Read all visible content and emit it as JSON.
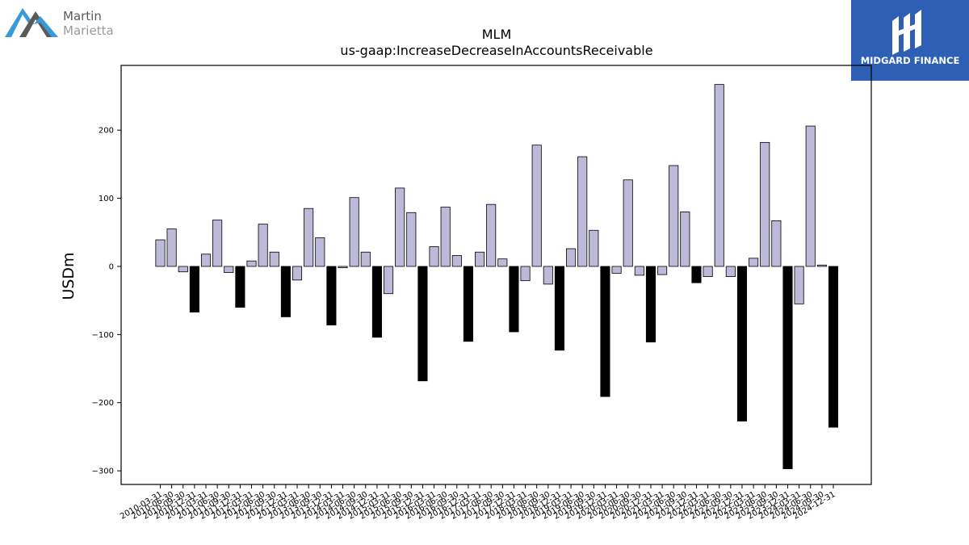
{
  "logos": {
    "left_line1": "Martin",
    "left_line2": "Marietta",
    "right_text": "MIDGARD FINANCE"
  },
  "colors": {
    "positive_bar": "#bcb9d9",
    "annual_bar": "#000000",
    "brand_blue": "#2d5fb4",
    "logo_blue": "#3a9ad9",
    "logo_gray": "#5a5a5a"
  },
  "chart_data": {
    "type": "bar",
    "title": "MLM",
    "subtitle": "us-gaap:IncreaseDecreaseInAccountsReceivable",
    "xlabel": "",
    "ylabel": "USDm",
    "ylim": [
      -320,
      295
    ],
    "yticks": [
      -300,
      -200,
      -100,
      0,
      100,
      200
    ],
    "ytick_labels": [
      "−300",
      "−200",
      "−100",
      "0",
      "100",
      "200"
    ],
    "grid": false,
    "categories": [
      "2010-03-31",
      "2010-06-30",
      "2010-09-30",
      "2010-12-31",
      "2011-03-31",
      "2011-06-30",
      "2011-09-30",
      "2011-12-31",
      "2012-03-31",
      "2012-06-30",
      "2012-09-30",
      "2012-12-31",
      "2013-03-31",
      "2013-06-30",
      "2013-09-30",
      "2013-12-31",
      "2014-03-31",
      "2014-06-30",
      "2014-09-30",
      "2014-12-31",
      "2015-03-31",
      "2015-06-30",
      "2015-09-30",
      "2015-12-31",
      "2016-03-31",
      "2016-06-30",
      "2016-09-30",
      "2016-12-31",
      "2017-03-31",
      "2017-06-30",
      "2017-09-30",
      "2017-12-31",
      "2018-03-31",
      "2018-06-30",
      "2018-09-30",
      "2018-12-31",
      "2019-03-31",
      "2019-06-30",
      "2019-09-30",
      "2019-12-31",
      "2020-03-31",
      "2020-06-30",
      "2020-09-30",
      "2020-12-31",
      "2021-03-31",
      "2021-06-30",
      "2021-09-30",
      "2021-12-31",
      "2022-03-31",
      "2022-06-30",
      "2022-09-30",
      "2022-12-31",
      "2023-03-31",
      "2023-06-30",
      "2023-09-30",
      "2023-12-31",
      "2024-03-31",
      "2024-06-30",
      "2024-09-30",
      "2024-12-31"
    ],
    "values": [
      39,
      55,
      -8,
      -67,
      18,
      68,
      -9,
      -60,
      8,
      62,
      21,
      -74,
      -20,
      85,
      42,
      -86,
      -2,
      101,
      21,
      -104,
      -40,
      115,
      79,
      -168,
      29,
      87,
      16,
      -110,
      21,
      91,
      11,
      -96,
      -21,
      178,
      -26,
      -123,
      26,
      161,
      53,
      -191,
      -10,
      127,
      -13,
      -111,
      -12,
      148,
      80,
      -24,
      -15,
      267,
      -15,
      -227,
      12,
      182,
      67,
      -297,
      -55,
      206,
      2,
      -236
    ],
    "highlight_every": 4
  }
}
